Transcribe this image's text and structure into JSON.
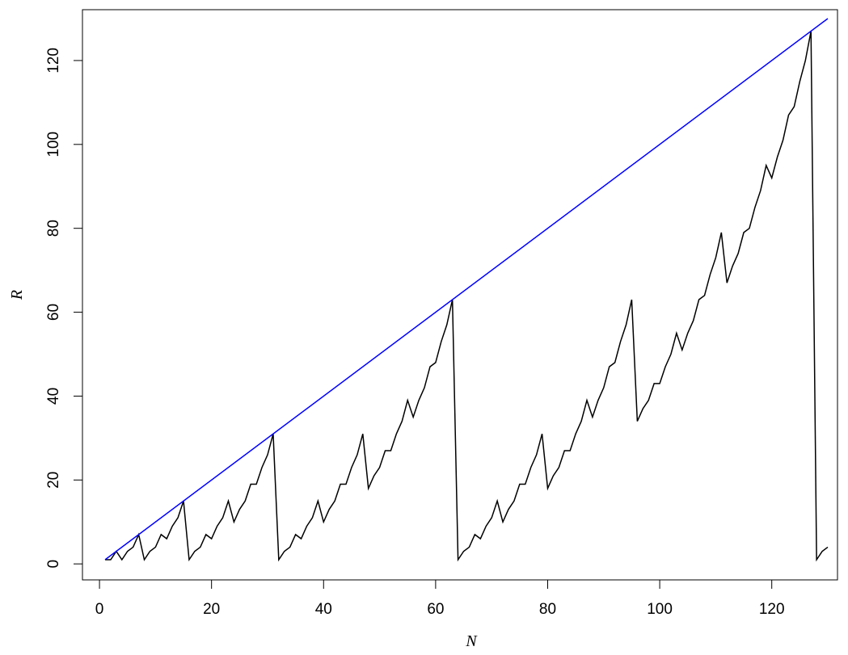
{
  "chart_data": {
    "type": "line",
    "title": "",
    "xlabel": "N",
    "ylabel": "R",
    "xlim": [
      1,
      130
    ],
    "ylim": [
      1,
      130
    ],
    "x_ticks": [
      0,
      20,
      40,
      60,
      80,
      100,
      120
    ],
    "y_ticks": [
      0,
      20,
      40,
      60,
      80,
      100,
      120
    ],
    "grid": false,
    "legend": "none",
    "series": [
      {
        "color": "#000000",
        "x": [
          1,
          2,
          3,
          4,
          5,
          6,
          7,
          8,
          9,
          10,
          11,
          12,
          13,
          14,
          15,
          16,
          17,
          18,
          19,
          20,
          21,
          22,
          23,
          24,
          25,
          26,
          27,
          28,
          29,
          30,
          31,
          32,
          33,
          34,
          35,
          36,
          37,
          38,
          39,
          40,
          41,
          42,
          43,
          44,
          45,
          46,
          47,
          48,
          49,
          50,
          51,
          52,
          53,
          54,
          55,
          56,
          57,
          58,
          59,
          60,
          61,
          62,
          63,
          64,
          65,
          66,
          67,
          68,
          69,
          70,
          71,
          72,
          73,
          74,
          75,
          76,
          77,
          78,
          79,
          80,
          81,
          82,
          83,
          84,
          85,
          86,
          87,
          88,
          89,
          90,
          91,
          92,
          93,
          94,
          95,
          96,
          97,
          98,
          99,
          100,
          101,
          102,
          103,
          104,
          105,
          106,
          107,
          108,
          109,
          110,
          111,
          112,
          113,
          114,
          115,
          116,
          117,
          118,
          119,
          120,
          121,
          122,
          123,
          124,
          125,
          126,
          127,
          128,
          129,
          130
        ],
        "values": [
          1,
          1,
          3,
          1,
          3,
          4,
          7,
          1,
          3,
          4,
          7,
          6,
          9,
          11,
          15,
          1,
          3,
          4,
          7,
          6,
          9,
          11,
          15,
          10,
          13,
          15,
          19,
          19,
          23,
          26,
          31,
          1,
          3,
          4,
          7,
          6,
          9,
          11,
          15,
          10,
          13,
          15,
          19,
          19,
          23,
          26,
          31,
          18,
          21,
          23,
          27,
          27,
          31,
          34,
          39,
          35,
          39,
          42,
          47,
          48,
          53,
          57,
          63,
          1,
          3,
          4,
          7,
          6,
          9,
          11,
          15,
          10,
          13,
          15,
          19,
          19,
          23,
          26,
          31,
          18,
          21,
          23,
          27,
          27,
          31,
          34,
          39,
          35,
          39,
          42,
          47,
          48,
          53,
          57,
          63,
          34,
          37,
          39,
          43,
          43,
          47,
          50,
          55,
          51,
          55,
          58,
          63,
          64,
          69,
          73,
          79,
          67,
          71,
          74,
          79,
          80,
          85,
          89,
          95,
          92,
          97,
          101,
          107,
          109,
          115,
          120,
          127,
          1,
          3,
          4
        ]
      },
      {
        "color": "#0000ff",
        "x": [
          1,
          130
        ],
        "values": [
          1,
          130
        ]
      }
    ]
  }
}
